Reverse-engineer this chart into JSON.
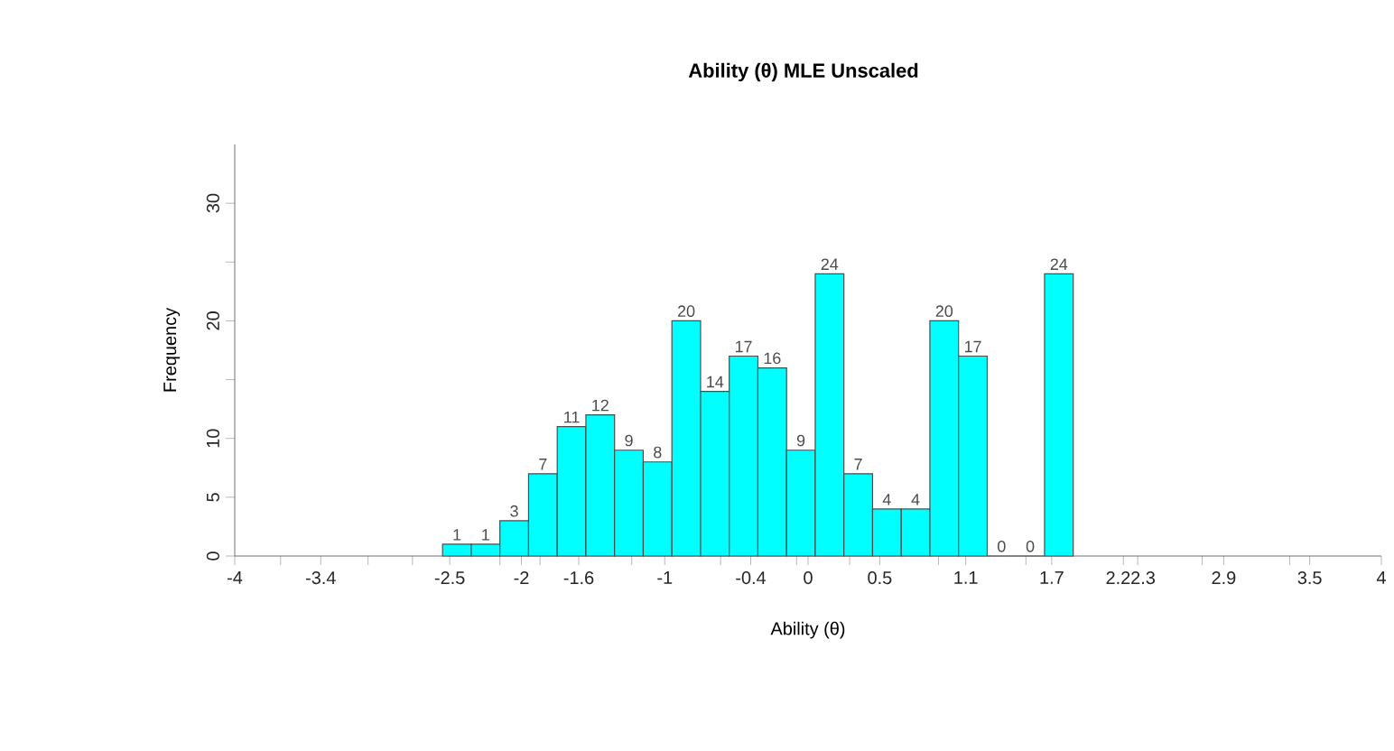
{
  "chart_data": {
    "type": "histogram",
    "title": "Ability (θ) MLE Unscaled",
    "xlabel": "Ability (θ)",
    "ylabel": "Frequency",
    "bins": [
      -2.55,
      -2.35,
      -2.15,
      -1.95,
      -1.75,
      -1.55,
      -1.35,
      -1.15,
      -0.95,
      -0.75,
      -0.55,
      -0.35,
      -0.15,
      0.05,
      0.25,
      0.45,
      0.65,
      0.85,
      1.05,
      1.25,
      1.45,
      1.65,
      1.85
    ],
    "values": [
      1,
      1,
      3,
      7,
      11,
      12,
      9,
      8,
      20,
      14,
      17,
      16,
      9,
      24,
      7,
      4,
      4,
      20,
      17,
      0,
      0,
      24
    ],
    "color": "#00ffff",
    "data_labels": true,
    "grid": false,
    "xlim": [
      -4,
      4
    ],
    "ylim": [
      0,
      35
    ],
    "xticks": [
      {
        "value": -4,
        "label": "-4"
      },
      {
        "value": -3.68,
        "label": null
      },
      {
        "value": -3.4,
        "label": "-3.4"
      },
      {
        "value": -3.07,
        "label": null
      },
      {
        "value": -2.76,
        "label": null
      },
      {
        "value": -2.5,
        "label": "-2.5"
      },
      {
        "value": -2.15,
        "label": null
      },
      {
        "value": -2,
        "label": "-2"
      },
      {
        "value": -1.87,
        "label": null
      },
      {
        "value": -1.6,
        "label": "-1.6"
      },
      {
        "value": -1.23,
        "label": null
      },
      {
        "value": -1,
        "label": "-1"
      },
      {
        "value": -0.61,
        "label": null
      },
      {
        "value": -0.4,
        "label": "-0.4"
      },
      {
        "value": -0.08,
        "label": null
      },
      {
        "value": 0,
        "label": "0"
      },
      {
        "value": 0.29,
        "label": null
      },
      {
        "value": 0.5,
        "label": "0.5"
      },
      {
        "value": 0.91,
        "label": null
      },
      {
        "value": 1.1,
        "label": "1.1"
      },
      {
        "value": 1.52,
        "label": null
      },
      {
        "value": 1.7,
        "label": "1.7"
      },
      {
        "value": 2.2,
        "label": "2.2"
      },
      {
        "value": 2.3,
        "label": "2.3"
      },
      {
        "value": 2.75,
        "label": null
      },
      {
        "value": 2.9,
        "label": "2.9"
      },
      {
        "value": 3.36,
        "label": null
      },
      {
        "value": 3.5,
        "label": "3.5"
      },
      {
        "value": 4,
        "label": "4"
      }
    ],
    "yticks": [
      0,
      5,
      10,
      {
        "value": 15,
        "label": null
      },
      20,
      {
        "value": 25,
        "label": null
      },
      30
    ]
  }
}
